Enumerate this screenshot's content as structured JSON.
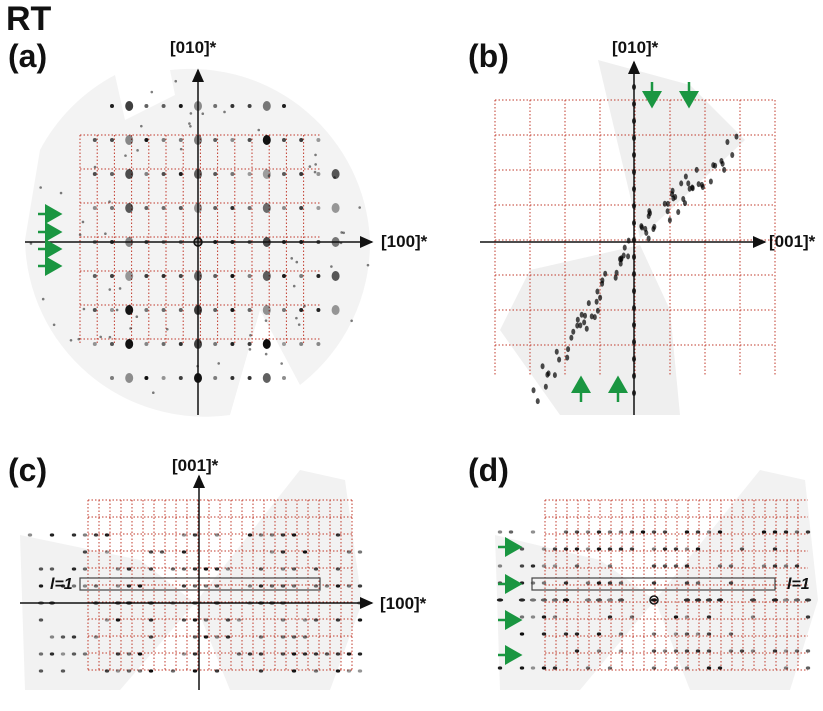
{
  "figure": {
    "title": "RT",
    "panels": [
      {
        "id": "a",
        "label": "(a)",
        "axis_vertical": "[010]*",
        "axis_horizontal": "[100]*"
      },
      {
        "id": "b",
        "label": "(b)",
        "axis_vertical": "[010]*",
        "axis_horizontal": "[001]*"
      },
      {
        "id": "c",
        "label": "(c)",
        "axis_vertical": "[001]*",
        "axis_horizontal": "[100]*",
        "row_label": "l=1"
      },
      {
        "id": "d",
        "label": "(d)",
        "row_label": "l=1"
      }
    ],
    "colors": {
      "grid": "#c0392b",
      "arrow": "#1a9641",
      "axes": "#111111",
      "spot": "#000000"
    }
  }
}
